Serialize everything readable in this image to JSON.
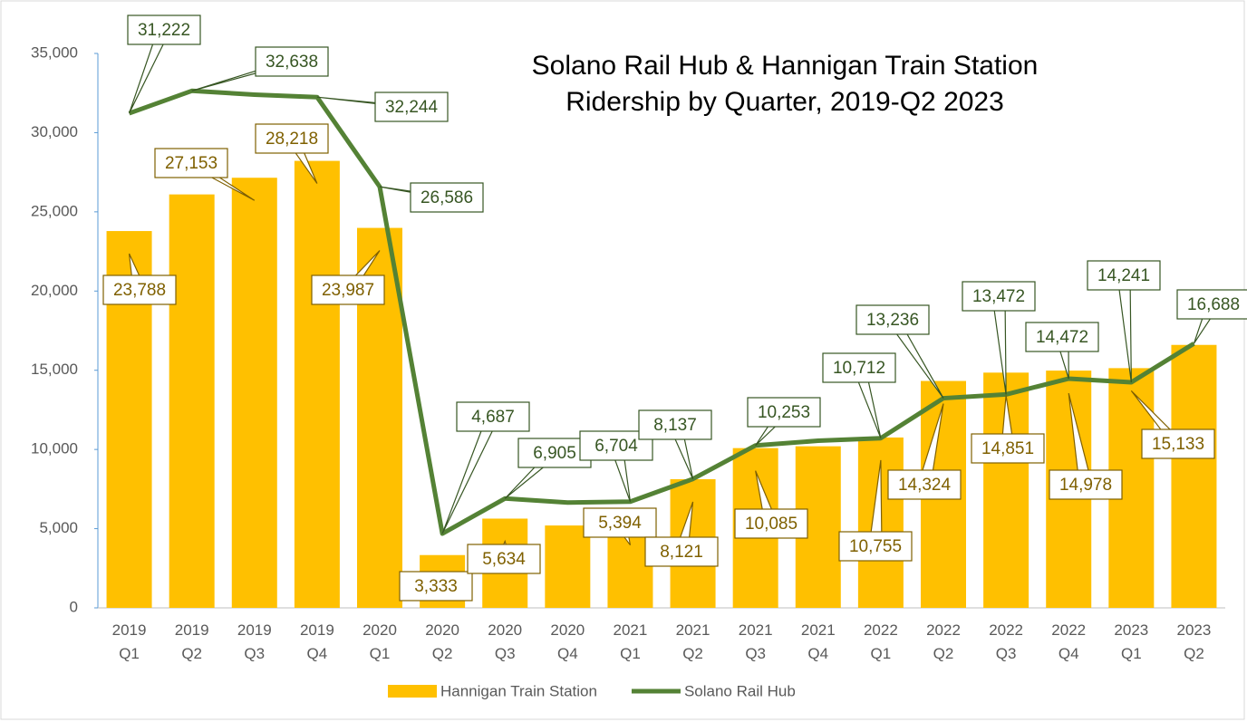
{
  "chart_data": {
    "type": "bar-line",
    "title": "Solano Rail Hub & Hannigan Train Station",
    "subtitle": "Ridership by Quarter, 2019-Q2 2023",
    "categories": [
      "2019 Q1",
      "2019 Q2",
      "2019 Q3",
      "2019 Q4",
      "2020 Q1",
      "2020 Q2",
      "2020 Q3",
      "2020 Q4",
      "2021 Q1",
      "2021 Q2",
      "2021 Q3",
      "2021 Q4",
      "2022 Q1",
      "2022 Q2",
      "2022 Q3",
      "2022 Q4",
      "2023 Q1",
      "2023 Q2"
    ],
    "series": [
      {
        "name": "Hannigan Train Station",
        "type": "bar",
        "color": "#ffc000",
        "label_color": "#7f6000",
        "values": [
          23788,
          26100,
          27153,
          28218,
          23987,
          3333,
          5634,
          5200,
          5394,
          8121,
          10085,
          10200,
          10755,
          14324,
          14851,
          14978,
          15133,
          16600
        ],
        "value_labels": [
          "23,788",
          null,
          "27,153",
          "28,218",
          "23,987",
          "3,333",
          "5,634",
          null,
          "5,394",
          "8,121",
          "10,085",
          null,
          "10,755",
          "14,324",
          "14,851",
          "14,978",
          "15,133",
          null
        ]
      },
      {
        "name": "Solano Rail Hub",
        "type": "line",
        "color": "#548235",
        "label_color": "#375623",
        "values": [
          31222,
          32638,
          32400,
          32244,
          26586,
          4687,
          6905,
          6650,
          6704,
          8137,
          10253,
          10550,
          10712,
          13236,
          13472,
          14472,
          14241,
          16688
        ],
        "value_labels": [
          "31,222",
          "32,638",
          null,
          "32,244",
          "26,586",
          "4,687",
          "6,905",
          null,
          "6,704",
          "8,137",
          "10,253",
          null,
          "10,712",
          "13,236",
          "13,472",
          "14,472",
          "14,241",
          "16,688"
        ]
      }
    ],
    "ylim": [
      0,
      35000
    ],
    "yticks": [
      0,
      {
        "value": 5000,
        "label": "5,000"
      },
      {
        "value": 10000,
        "label": "10,000"
      },
      {
        "value": 15000,
        "label": "15,000"
      },
      {
        "value": 20000,
        "label": "20,000"
      },
      {
        "value": 25000,
        "label": "25,000"
      },
      {
        "value": 30000,
        "label": "30,000"
      },
      {
        "value": 35000,
        "label": "35,000"
      }
    ],
    "grid": false,
    "legend": "bottom"
  }
}
